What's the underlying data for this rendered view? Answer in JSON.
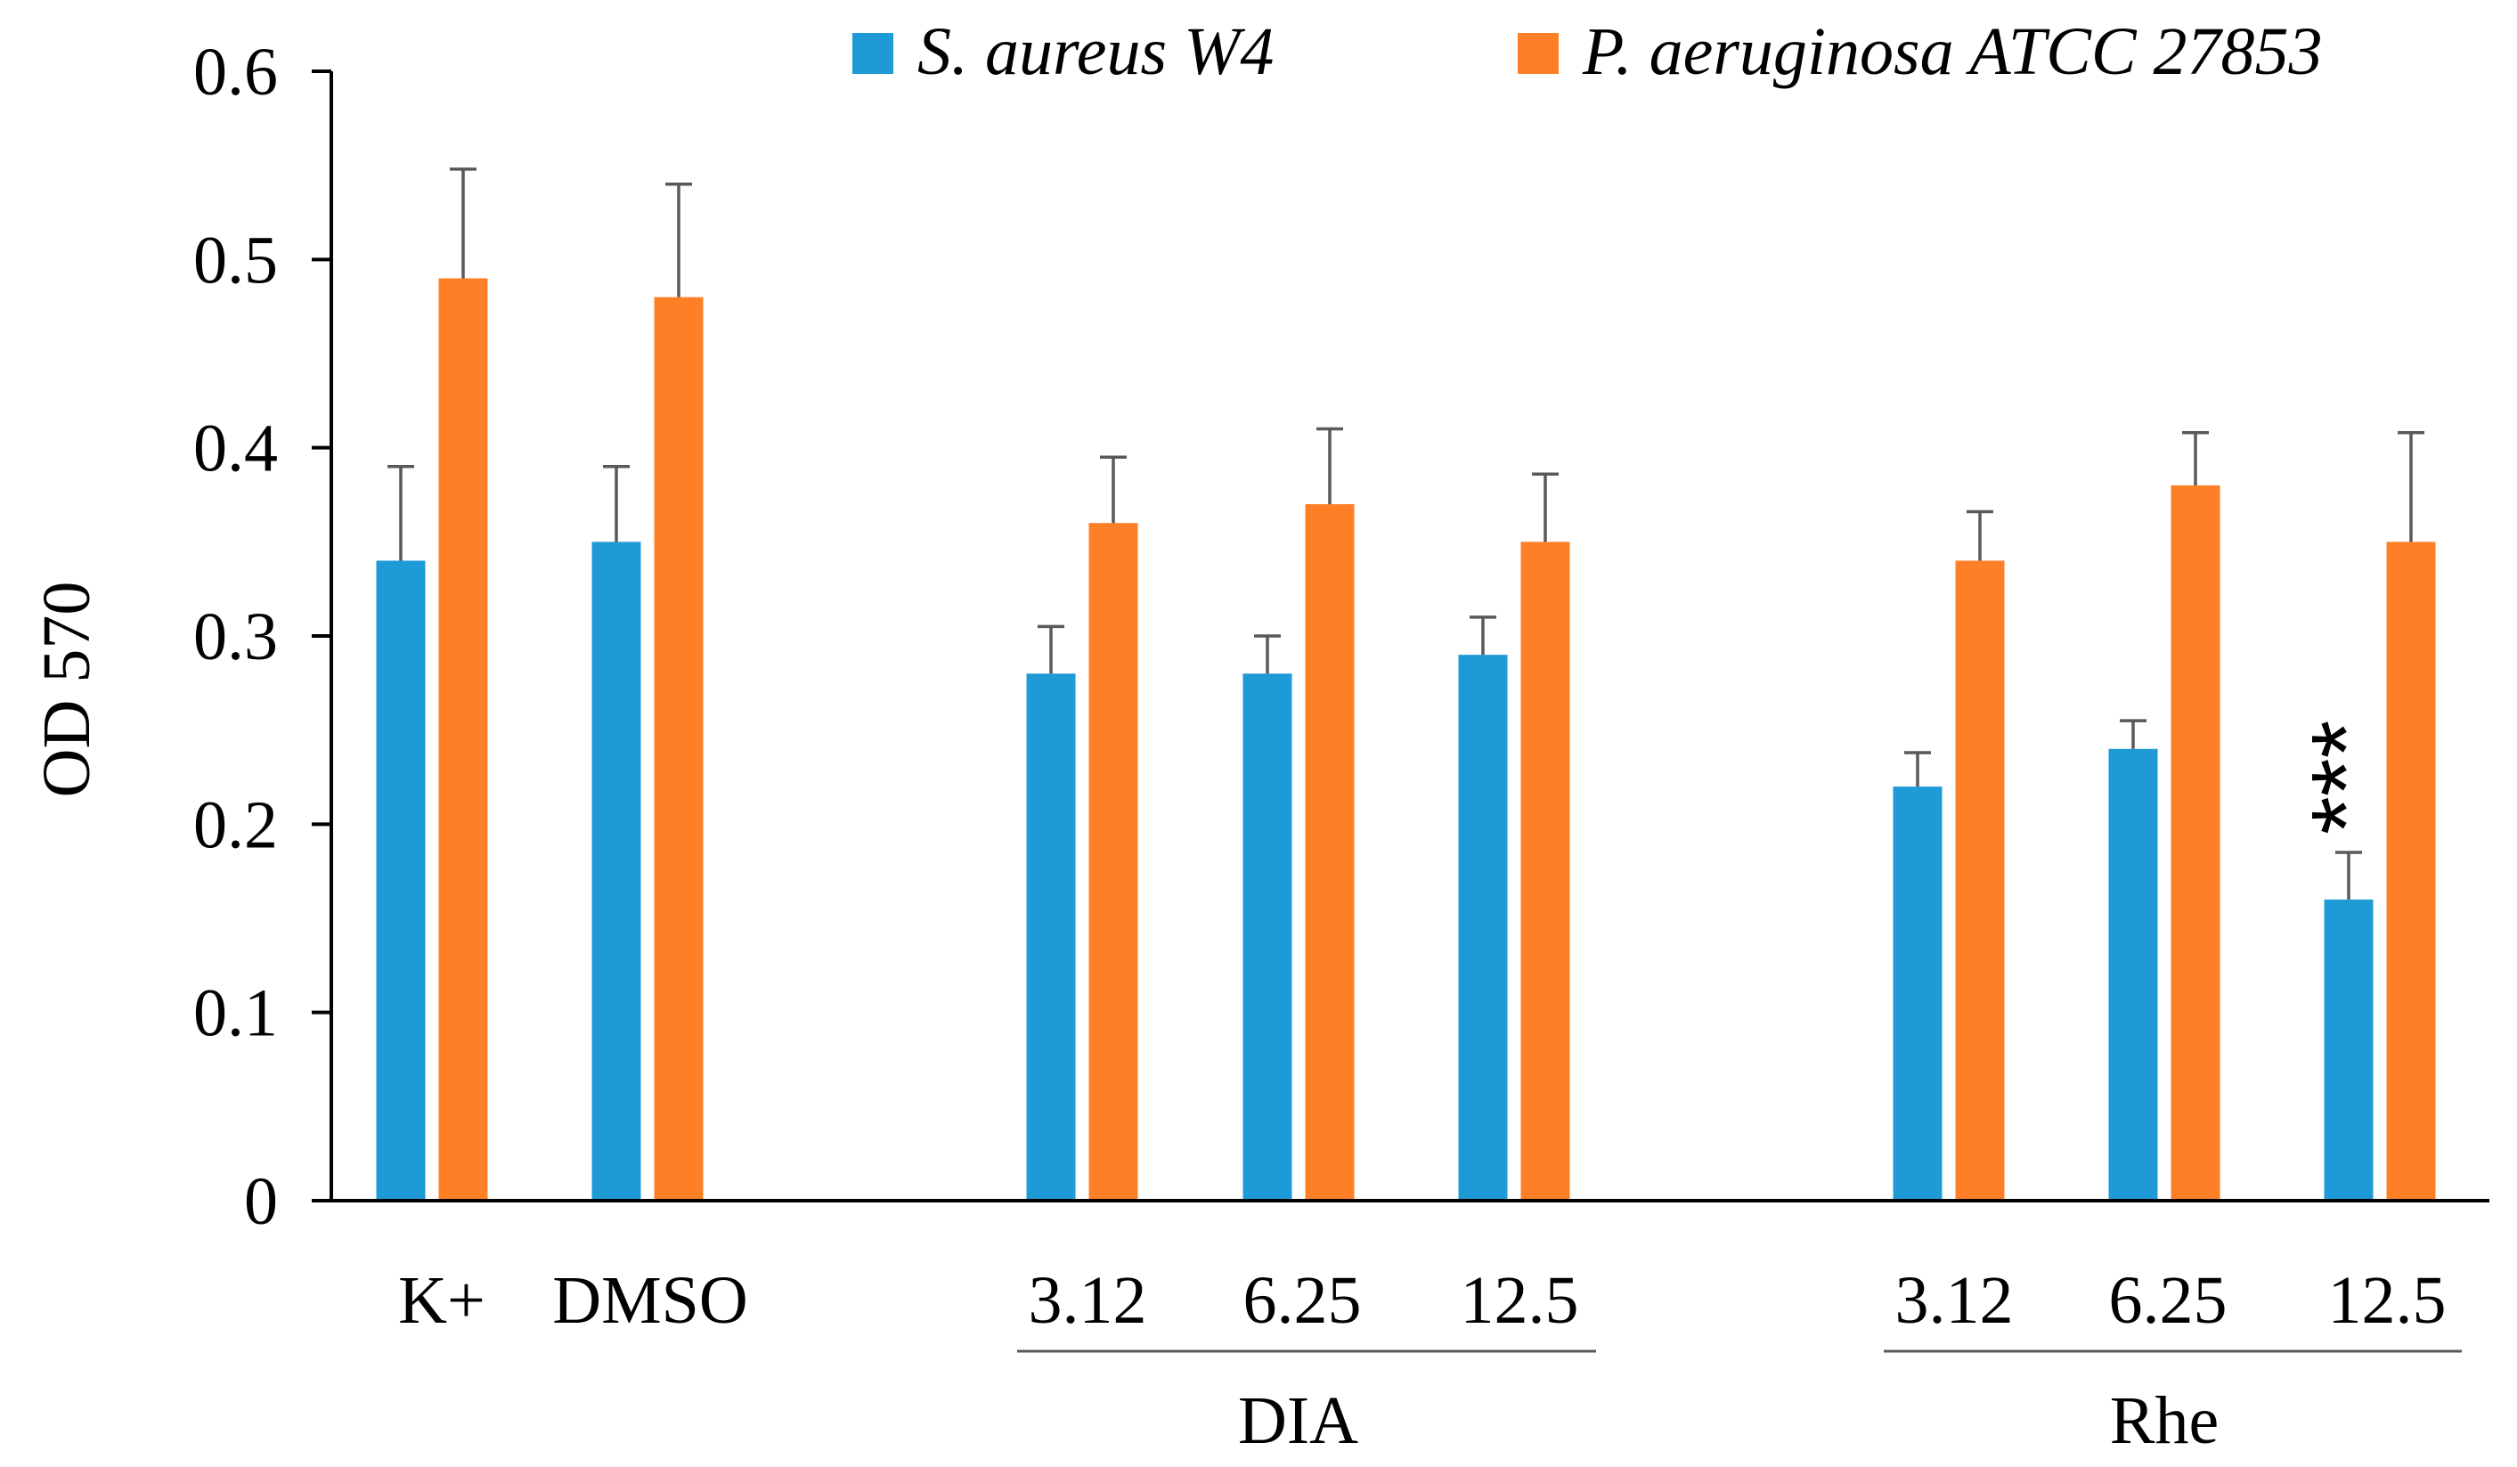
{
  "chart_data": {
    "type": "bar",
    "ylabel": "OD 570",
    "ylim": [
      0,
      0.6
    ],
    "yticks": [
      "0",
      "0.1",
      "0.2",
      "0.3",
      "0.4",
      "0.5",
      "0.6"
    ],
    "ytick_values": [
      0,
      0.1,
      0.2,
      0.3,
      0.4,
      0.5,
      0.6
    ],
    "grid": false,
    "legend_position": "top",
    "categories": [
      "K+",
      "DMSO",
      "3.12",
      "6.25",
      "12.5",
      "3.12",
      "6.25",
      "12.5"
    ],
    "groups": [
      {
        "label": "DIA",
        "members": [
          2,
          3,
          4
        ]
      },
      {
        "label": "Rhe",
        "members": [
          5,
          6,
          7
        ]
      }
    ],
    "series": [
      {
        "name": "S. aureus W4",
        "color": "#1E9BD7",
        "values": [
          0.34,
          0.35,
          0.28,
          0.28,
          0.29,
          0.22,
          0.24,
          0.16
        ],
        "errors": [
          0.05,
          0.04,
          0.025,
          0.02,
          0.02,
          0.018,
          0.015,
          0.025
        ]
      },
      {
        "name": "P. aeruginosa ATCC 27853",
        "color": "#FF7F27",
        "values": [
          0.49,
          0.48,
          0.36,
          0.37,
          0.35,
          0.34,
          0.38,
          0.35
        ],
        "errors": [
          0.058,
          0.06,
          0.035,
          0.04,
          0.036,
          0.026,
          0.028,
          0.058
        ]
      }
    ],
    "annotations": [
      {
        "text": "***",
        "category_index": 7,
        "series_index": 0
      }
    ]
  }
}
